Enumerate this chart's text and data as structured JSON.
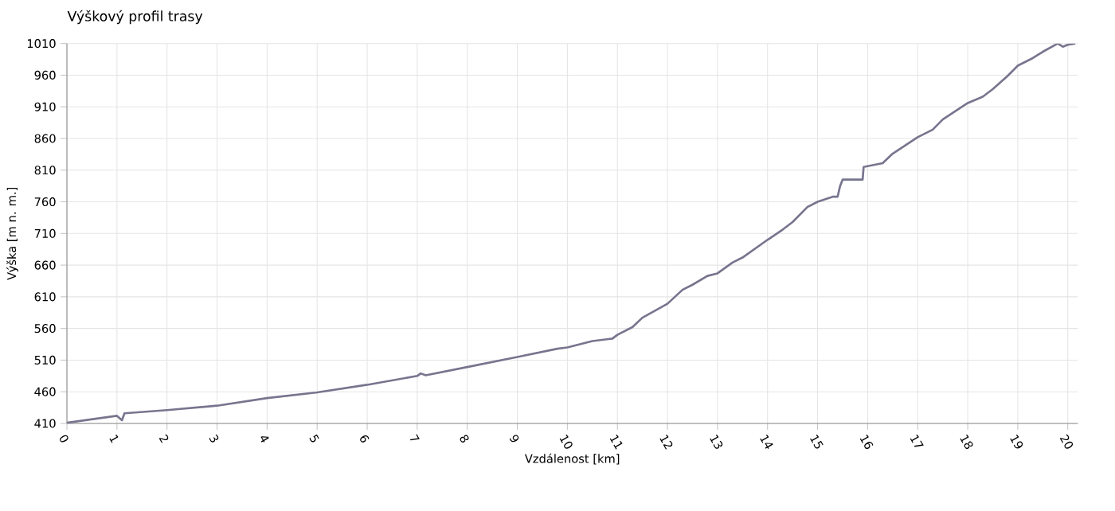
{
  "chart_data": {
    "type": "line",
    "title": "Výškový profil trasy",
    "xlabel": "Vzdálenost [km]",
    "ylabel": "Výška [m n. m.]",
    "xlim": [
      0,
      20.2
    ],
    "xticks": [
      0,
      1,
      2,
      3,
      4,
      5,
      6,
      7,
      8,
      9,
      10,
      11,
      12,
      13,
      14,
      15,
      16,
      17,
      18,
      19,
      20
    ],
    "ylim": [
      410,
      1010
    ],
    "yticks": [
      410,
      460,
      510,
      560,
      610,
      660,
      710,
      760,
      810,
      860,
      910,
      960,
      1010
    ],
    "grid": true,
    "marker": "none",
    "line_style": "solid",
    "series": [
      {
        "color": "#77758e",
        "x": [
          0,
          1,
          1.1,
          1.15,
          2,
          3,
          4,
          5,
          6,
          7,
          7.07,
          7.17,
          8,
          9,
          9.8,
          10,
          10.5,
          10.9,
          11,
          11.3,
          11.5,
          12,
          12.3,
          12.5,
          12.8,
          13,
          13.3,
          13.5,
          14,
          14.3,
          14.5,
          14.8,
          15,
          15.3,
          15.4,
          15.45,
          15.5,
          15.9,
          15.92,
          16.3,
          16.5,
          17,
          17.3,
          17.5,
          18,
          18.3,
          18.5,
          18.8,
          19,
          19.3,
          19.5,
          19.8,
          19.9,
          20,
          20.15
        ],
        "values": [
          411,
          422,
          415,
          426,
          431,
          438,
          450,
          459,
          471,
          485,
          489,
          486,
          499,
          515,
          528,
          530,
          540,
          544,
          550,
          562,
          577,
          599,
          621,
          629,
          643,
          647,
          664,
          672,
          700,
          716,
          728,
          752,
          760,
          768,
          768,
          785,
          795,
          795,
          815,
          821,
          836,
          862,
          874,
          890,
          916,
          926,
          938,
          959,
          975,
          987,
          997,
          1010,
          1005,
          1008,
          1010
        ]
      }
    ]
  }
}
